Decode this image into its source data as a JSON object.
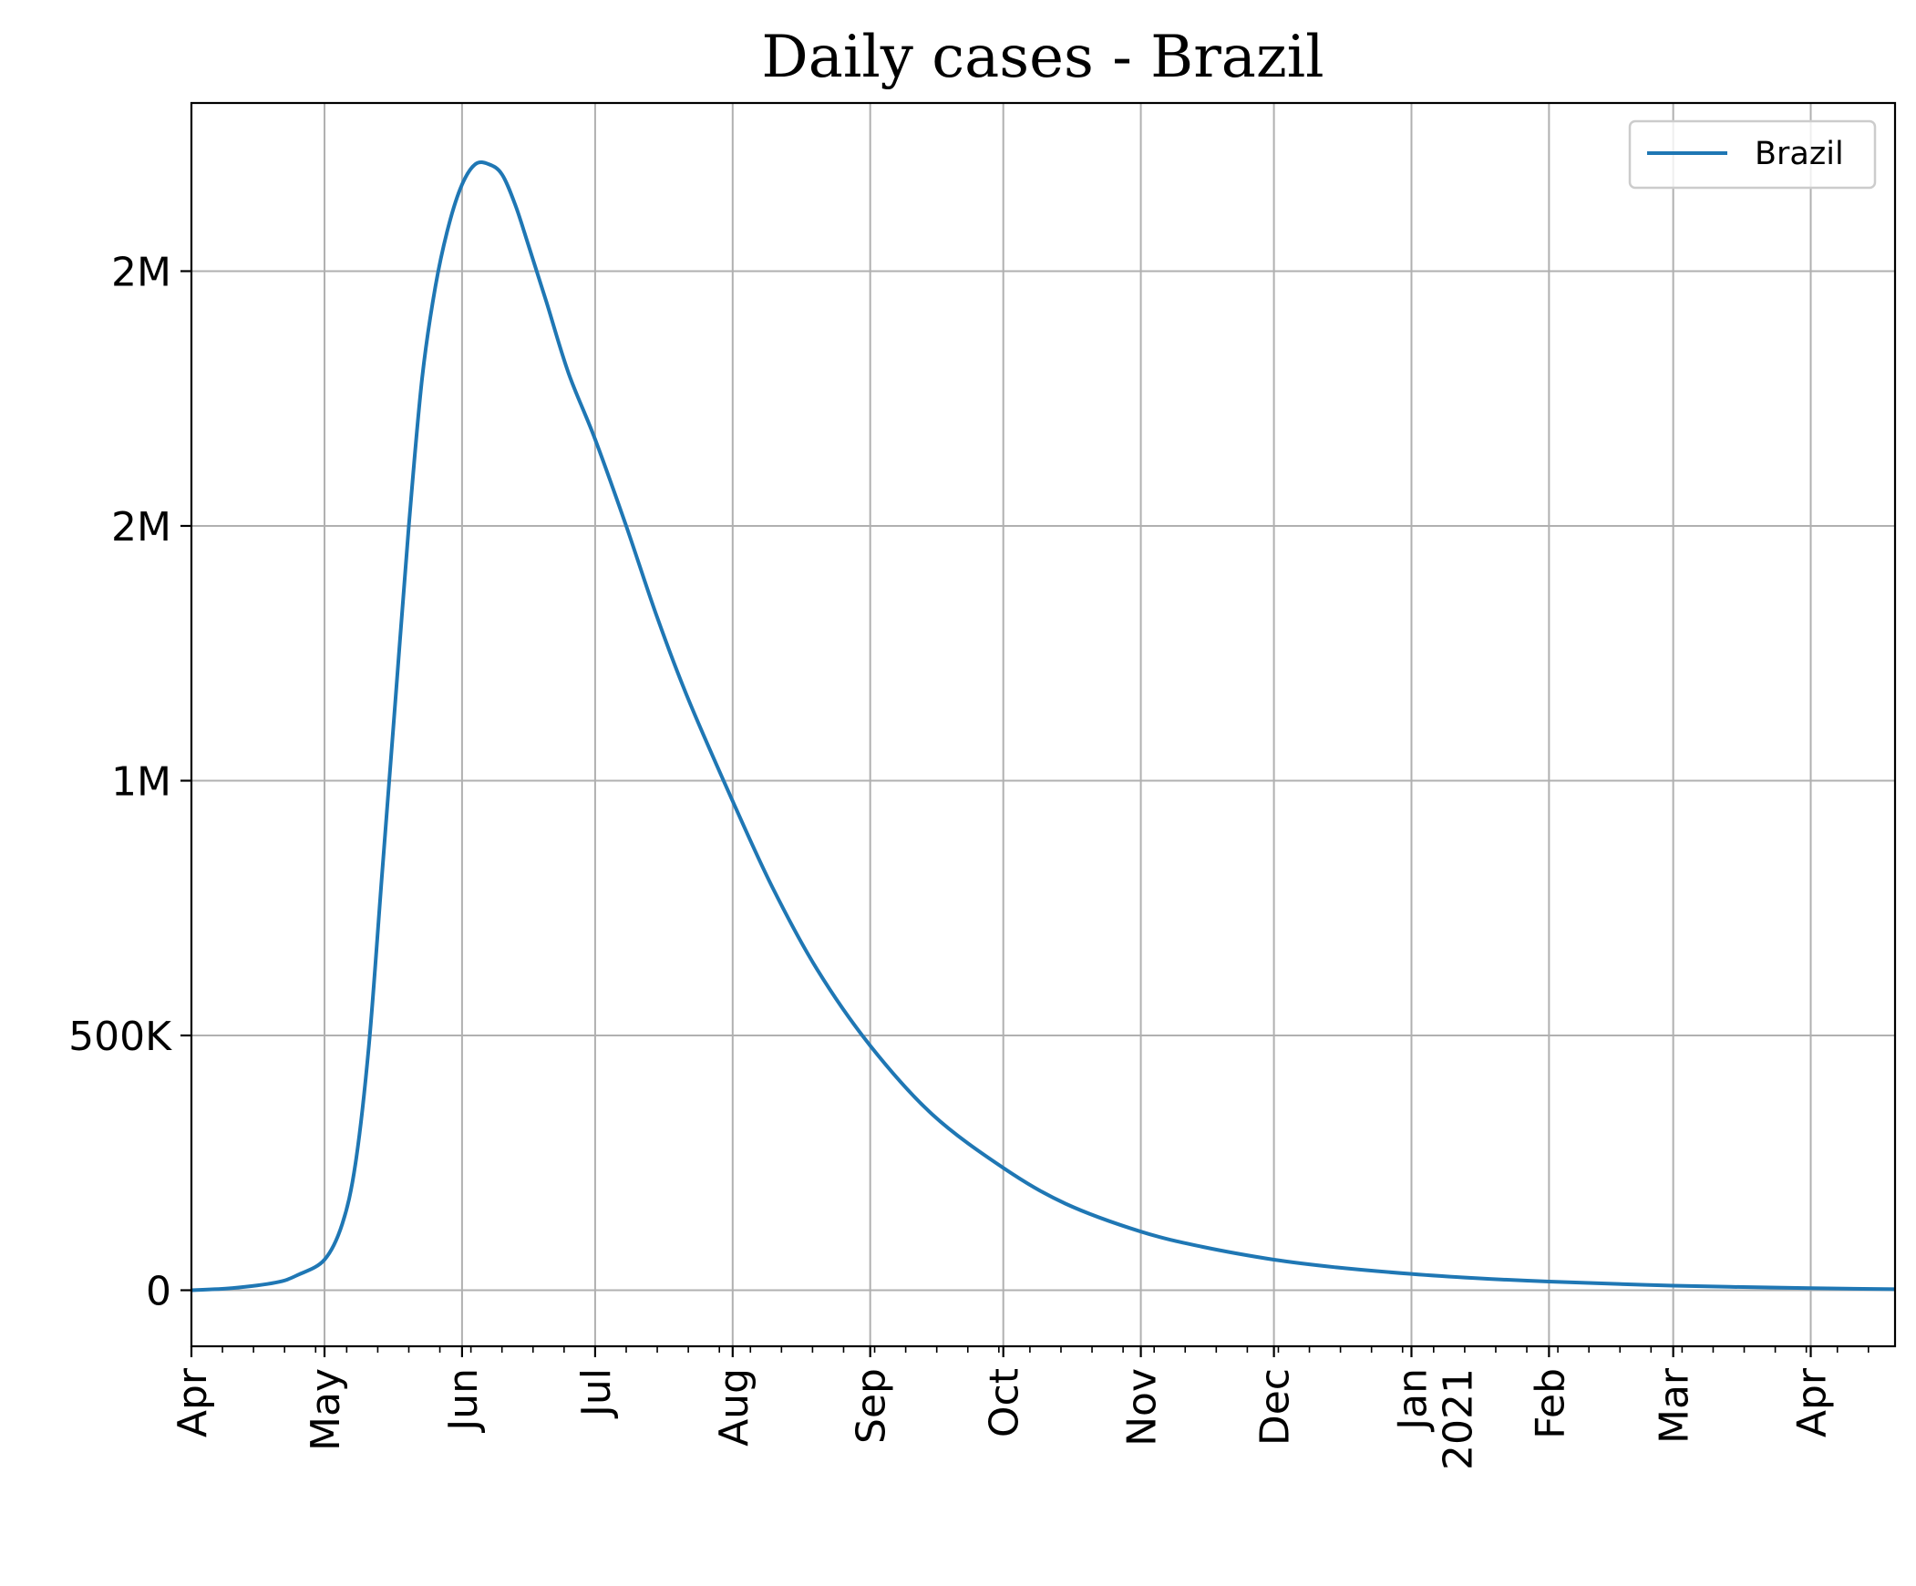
{
  "chart_data": {
    "type": "line",
    "title": "Daily cases - Brazil",
    "xlabel": "",
    "ylabel": "",
    "xlim": [
      "2020-04-01",
      "2021-04-20"
    ],
    "ylim": [
      -110000,
      2330000
    ],
    "grid": true,
    "legend": {
      "position": "top-right",
      "entries": [
        "Brazil"
      ]
    },
    "x_ticks": [
      {
        "date": "2020-04-01",
        "label": "Apr"
      },
      {
        "date": "2020-05-01",
        "label": "May"
      },
      {
        "date": "2020-06-01",
        "label": "Jun"
      },
      {
        "date": "2020-07-01",
        "label": "Jul"
      },
      {
        "date": "2020-08-01",
        "label": "Aug"
      },
      {
        "date": "2020-09-01",
        "label": "Sep"
      },
      {
        "date": "2020-10-01",
        "label": "Oct"
      },
      {
        "date": "2020-11-01",
        "label": "Nov"
      },
      {
        "date": "2020-12-01",
        "label": "Dec"
      },
      {
        "date": "2021-01-01",
        "label": "Jan",
        "sublabel": "2021"
      },
      {
        "date": "2021-02-01",
        "label": "Feb"
      },
      {
        "date": "2021-03-01",
        "label": "Mar"
      },
      {
        "date": "2021-04-01",
        "label": "Apr"
      }
    ],
    "y_ticks": [
      {
        "value": 0,
        "label": "0"
      },
      {
        "value": 500000,
        "label": "500K"
      },
      {
        "value": 1000000,
        "label": "1M"
      },
      {
        "value": 1500000,
        "label": "2M"
      },
      {
        "value": 2000000,
        "label": "2M"
      }
    ],
    "series": [
      {
        "name": "Brazil",
        "color": "#1f77b4",
        "points": [
          [
            "2020-04-01",
            0
          ],
          [
            "2020-04-10",
            4000
          ],
          [
            "2020-04-20",
            15000
          ],
          [
            "2020-04-25",
            30000
          ],
          [
            "2020-05-01",
            60000
          ],
          [
            "2020-05-05",
            130000
          ],
          [
            "2020-05-08",
            250000
          ],
          [
            "2020-05-11",
            480000
          ],
          [
            "2020-05-14",
            820000
          ],
          [
            "2020-05-17",
            1160000
          ],
          [
            "2020-05-20",
            1500000
          ],
          [
            "2020-05-23",
            1790000
          ],
          [
            "2020-05-26",
            1970000
          ],
          [
            "2020-05-29",
            2090000
          ],
          [
            "2020-06-01",
            2170000
          ],
          [
            "2020-06-04",
            2210000
          ],
          [
            "2020-06-07",
            2210000
          ],
          [
            "2020-06-10",
            2190000
          ],
          [
            "2020-06-13",
            2130000
          ],
          [
            "2020-06-16",
            2050000
          ],
          [
            "2020-06-20",
            1940000
          ],
          [
            "2020-06-25",
            1800000
          ],
          [
            "2020-07-01",
            1670000
          ],
          [
            "2020-07-08",
            1500000
          ],
          [
            "2020-07-15",
            1320000
          ],
          [
            "2020-07-22",
            1160000
          ],
          [
            "2020-08-01",
            960000
          ],
          [
            "2020-08-10",
            790000
          ],
          [
            "2020-08-20",
            630000
          ],
          [
            "2020-09-01",
            480000
          ],
          [
            "2020-09-15",
            345000
          ],
          [
            "2020-10-01",
            240000
          ],
          [
            "2020-10-15",
            170000
          ],
          [
            "2020-11-01",
            115000
          ],
          [
            "2020-11-15",
            85000
          ],
          [
            "2020-12-01",
            60000
          ],
          [
            "2020-12-15",
            45000
          ],
          [
            "2021-01-01",
            32000
          ],
          [
            "2021-01-15",
            24000
          ],
          [
            "2021-02-01",
            17000
          ],
          [
            "2021-03-01",
            9000
          ],
          [
            "2021-04-01",
            4000
          ],
          [
            "2021-04-20",
            2000
          ]
        ]
      }
    ]
  }
}
